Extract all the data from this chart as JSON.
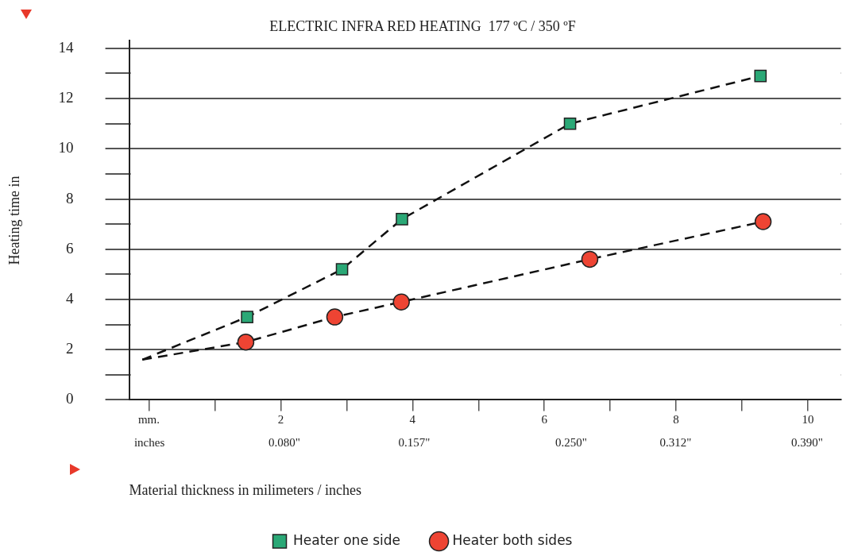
{
  "chart_data": {
    "type": "scatter",
    "title": "ELECTRIC INFRA RED HEATING  177 ºC / 350 ºF",
    "xlabel": "Material thickness in milimeters / inches",
    "ylabel": "Heating time in",
    "series": [
      {
        "name": "Heater one side",
        "marker": "square",
        "color": "#2aa876",
        "x": [
          1.49,
          2.93,
          3.84,
          6.39,
          9.28
        ],
        "values": [
          3.3,
          5.2,
          7.2,
          11.0,
          12.9
        ]
      },
      {
        "name": "Heater both sides",
        "marker": "circle",
        "color": "#ee4433",
        "x": [
          1.47,
          2.82,
          3.83,
          6.69,
          9.32
        ],
        "values": [
          2.3,
          3.3,
          3.9,
          5.6,
          7.1
        ]
      },
      {
        "type": "line",
        "line_style": "dashed",
        "marker": "none",
        "color": "#111111",
        "x": [
          -0.1,
          1.49,
          2.93,
          3.84,
          6.39,
          9.28
        ],
        "values": [
          1.6,
          3.3,
          5.2,
          7.2,
          11.0,
          12.9
        ]
      },
      {
        "type": "line",
        "line_style": "dashed",
        "marker": "none",
        "color": "#111111",
        "x": [
          -0.1,
          1.47,
          2.82,
          3.83,
          6.69,
          9.32
        ],
        "values": [
          1.6,
          2.3,
          3.3,
          3.9,
          5.6,
          7.1
        ]
      }
    ],
    "xlim": [
      -0.3,
      10.5
    ],
    "ylim": [
      0,
      14.3
    ],
    "xticks": [
      {
        "value": 0,
        "label": "mm."
      },
      {
        "value": 1,
        "label": null
      },
      2,
      {
        "value": 3,
        "label": null
      },
      4,
      {
        "value": 5,
        "label": null
      },
      6,
      {
        "value": 7,
        "label": null
      },
      8,
      {
        "value": 9,
        "label": null
      },
      10
    ],
    "x2lim": [
      -0.012,
      0.41
    ],
    "x2ticks": [
      {
        "value": 0,
        "label": "inches"
      },
      {
        "value": 0.08,
        "label": "0.080\""
      },
      {
        "value": 0.157,
        "label": "0.157\""
      },
      {
        "value": 0.25,
        "label": "0.250\""
      },
      {
        "value": 0.312,
        "label": "0.312\""
      },
      {
        "value": 0.39,
        "label": "0.390\""
      }
    ],
    "yticks": [
      0,
      {
        "value": 1,
        "label": null
      },
      2,
      {
        "value": 3,
        "label": null
      },
      4,
      {
        "value": 5,
        "label": null
      },
      6,
      {
        "value": 7,
        "label": null
      },
      8,
      {
        "value": 9,
        "label": null
      },
      10,
      {
        "value": 11,
        "label": null
      },
      12,
      {
        "value": 13,
        "label": null
      },
      14
    ],
    "grid": "y",
    "legend": "bottom"
  }
}
